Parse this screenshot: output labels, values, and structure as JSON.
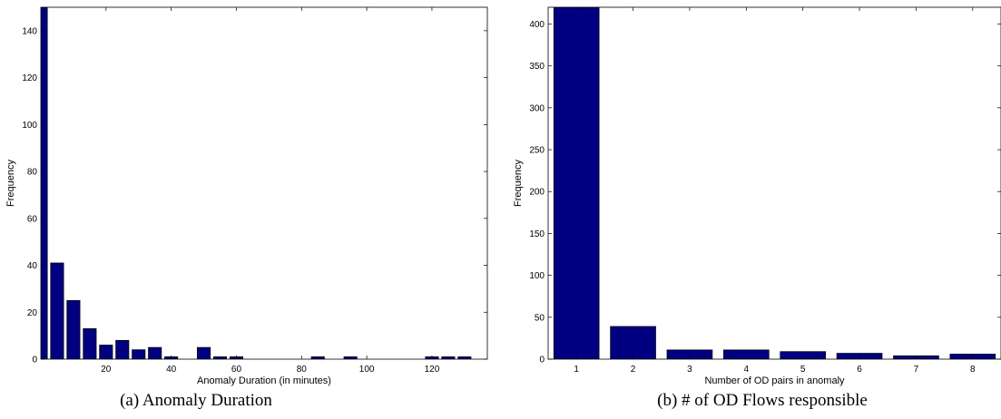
{
  "chart_data": [
    {
      "type": "bar",
      "caption": "(a) Anomaly Duration",
      "xlabel": "Anomaly Duration (in minutes)",
      "ylabel": "Frequency",
      "xlim": [
        0,
        137
      ],
      "ylim": [
        0,
        150
      ],
      "xticks": [
        20,
        40,
        60,
        80,
        100,
        120
      ],
      "yticks": [
        0,
        20,
        40,
        60,
        80,
        100,
        120,
        140
      ],
      "bar_width": 4,
      "bar_color": "#000080",
      "x": [
        0,
        5,
        10,
        15,
        20,
        25,
        30,
        35,
        40,
        45,
        50,
        55,
        60,
        65,
        70,
        75,
        80,
        85,
        90,
        95,
        100,
        105,
        110,
        115,
        120,
        125,
        130,
        135
      ],
      "values": [
        150,
        41,
        25,
        13,
        6,
        8,
        4,
        5,
        1,
        0,
        5,
        1,
        1,
        0,
        0,
        0,
        0,
        1,
        0,
        1,
        0,
        0,
        0,
        0,
        1,
        1,
        1,
        0
      ]
    },
    {
      "type": "bar",
      "caption": "(b) # of OD Flows responsible",
      "xlabel": "Number of OD pairs in anomaly",
      "ylabel": "Frequency",
      "xlim": [
        0.5,
        8.5
      ],
      "ylim": [
        0,
        420
      ],
      "xticks": [
        1,
        2,
        3,
        4,
        5,
        6,
        7,
        8
      ],
      "yticks": [
        0,
        50,
        100,
        150,
        200,
        250,
        300,
        350,
        400
      ],
      "bar_width": 0.8,
      "bar_color": "#000080",
      "x": [
        1,
        2,
        3,
        4,
        5,
        6,
        7,
        8
      ],
      "values": [
        420,
        39,
        11,
        11,
        9,
        7,
        4,
        6
      ]
    }
  ]
}
